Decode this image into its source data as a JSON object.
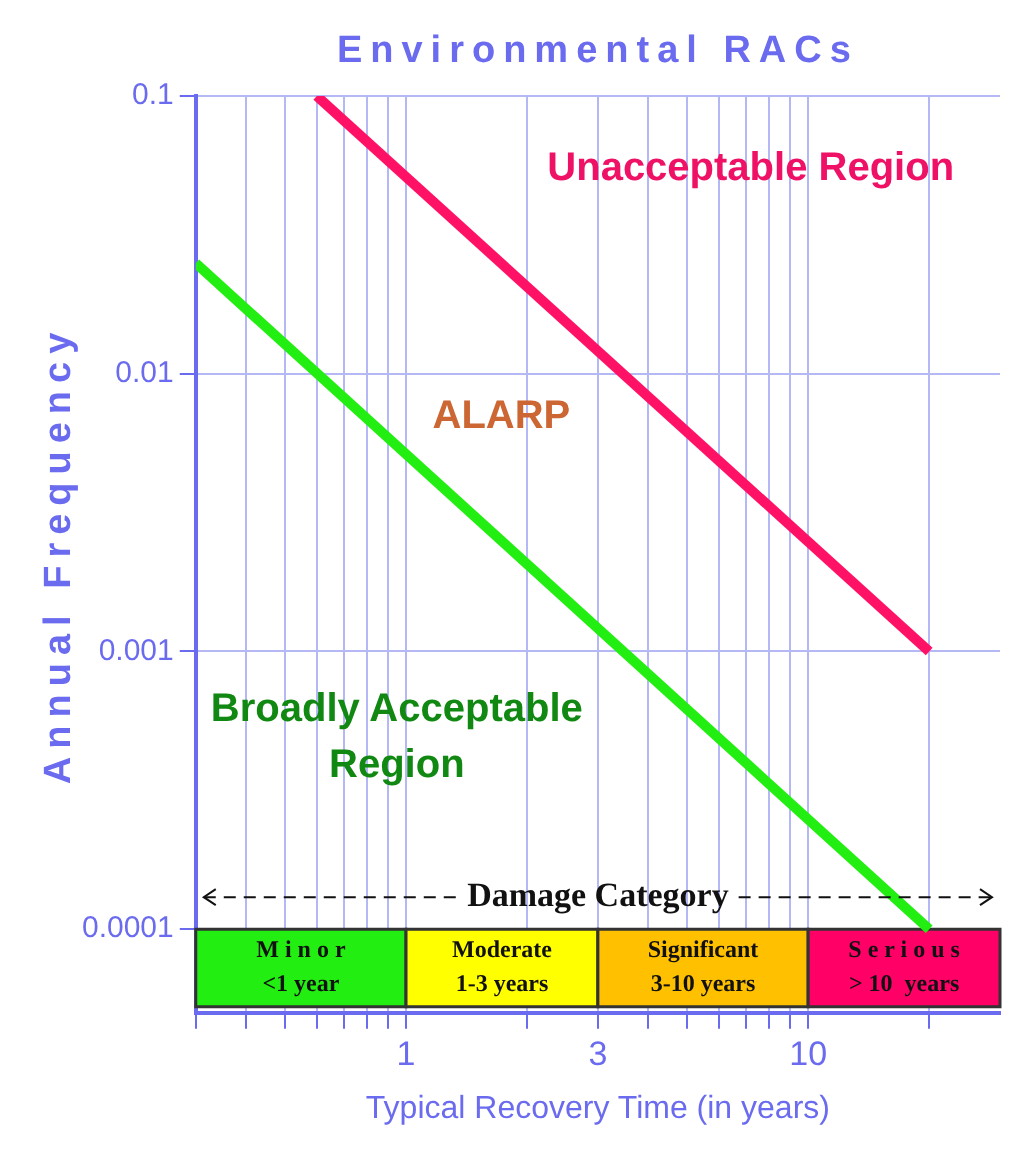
{
  "chart_data": {
    "type": "line",
    "title": "Environmental RACs",
    "xlabel": "Typical Recovery Time (in years)",
    "ylabel": "Annual Frequency",
    "log": "xy",
    "grid": true,
    "legend": false,
    "marker": "none",
    "line_style": "solid",
    "xlim": [
      0.3,
      30
    ],
    "ylim": [
      5e-05,
      0.1
    ],
    "xticks": [
      {
        "value": 0.3,
        "label": null
      },
      {
        "value": 0.4,
        "label": null
      },
      {
        "value": 0.5,
        "label": null
      },
      {
        "value": 0.6,
        "label": null
      },
      {
        "value": 0.7,
        "label": null
      },
      {
        "value": 0.8,
        "label": null
      },
      {
        "value": 0.9,
        "label": null
      },
      1,
      {
        "value": 2,
        "label": null
      },
      3,
      {
        "value": 4,
        "label": null
      },
      {
        "value": 5,
        "label": null
      },
      {
        "value": 6,
        "label": null
      },
      {
        "value": 7,
        "label": null
      },
      {
        "value": 8,
        "label": null
      },
      {
        "value": 9,
        "label": null
      },
      10,
      {
        "value": 20,
        "label": null
      }
    ],
    "yticks": [
      0.0001,
      0.001,
      0.01,
      0.1
    ],
    "series": [
      {
        "color": "#ff1166",
        "x": [
          0.6,
          20
        ],
        "values": [
          0.1,
          0.001
        ]
      },
      {
        "color": "#22ee11",
        "x": [
          0.3,
          20
        ],
        "values": [
          0.025,
          0.0001
        ]
      }
    ],
    "bands": [
      {
        "axis": "x",
        "from": 0.3,
        "to": 1,
        "label": "M i n o r\n<1 year",
        "color": "#22ee11"
      },
      {
        "axis": "x",
        "from": 1,
        "to": 3,
        "label": "Moderate\n1-3 years",
        "color": "#ffff00"
      },
      {
        "axis": "x",
        "from": 3,
        "to": 10,
        "label": "Significant\n3-10 years",
        "color": "#ffc000"
      },
      {
        "axis": "x",
        "from": 10,
        "to": 30,
        "label": "S e r i o u s\n> 10  years",
        "color": "#ff0066"
      }
    ],
    "annotations": [
      "Unacceptable Region",
      "ALARP",
      "Broadly Acceptable\nRegion",
      "Damage Category"
    ]
  }
}
